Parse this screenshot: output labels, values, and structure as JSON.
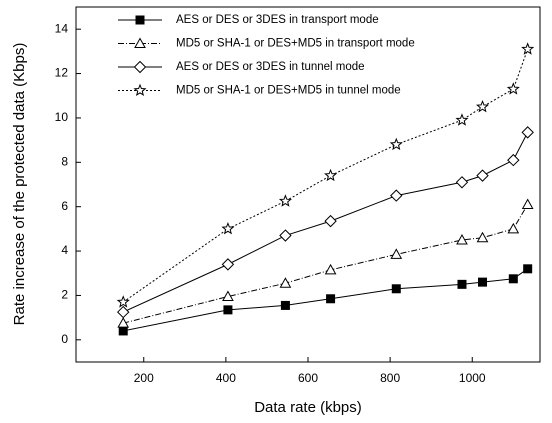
{
  "chart_data": {
    "type": "line",
    "x_label": "Data rate (kbps)",
    "y_label": "Rate increase of the protected data (Kbps)",
    "x": [
      150,
      405,
      545,
      655,
      815,
      975,
      1025,
      1100,
      1135
    ],
    "xlim": [
      35,
      1165
    ],
    "xticks": [
      200,
      400,
      600,
      800,
      1000
    ],
    "ylim": [
      -1,
      15
    ],
    "yticks": [
      0,
      2,
      4,
      6,
      8,
      10,
      12,
      14
    ],
    "legend": "upper-left",
    "series": [
      {
        "name": "AES or DES or 3DES in transport mode",
        "color": "#000000",
        "marker": "square",
        "dash": "solid",
        "values": [
          0.4,
          1.35,
          1.55,
          1.85,
          2.3,
          2.5,
          2.6,
          2.75,
          3.2
        ]
      },
      {
        "name": "MD5 or SHA-1 or DES+MD5 in transport mode",
        "color": "#000000",
        "marker": "triangle",
        "dash": "dashdot",
        "values": [
          0.75,
          1.95,
          2.55,
          3.15,
          3.85,
          4.5,
          4.6,
          5.0,
          6.1
        ]
      },
      {
        "name": "AES or DES or 3DES in tunnel mode",
        "color": "#000000",
        "marker": "diamond",
        "dash": "solid",
        "values": [
          1.25,
          3.4,
          4.7,
          5.35,
          6.5,
          7.1,
          7.4,
          8.1,
          9.35
        ]
      },
      {
        "name": "MD5 or SHA-1 or DES+MD5 in tunnel mode",
        "color": "#000000",
        "marker": "star",
        "dash": "dotted",
        "values": [
          1.7,
          5.0,
          6.25,
          7.4,
          8.8,
          9.9,
          10.5,
          11.3,
          13.1
        ]
      }
    ]
  }
}
